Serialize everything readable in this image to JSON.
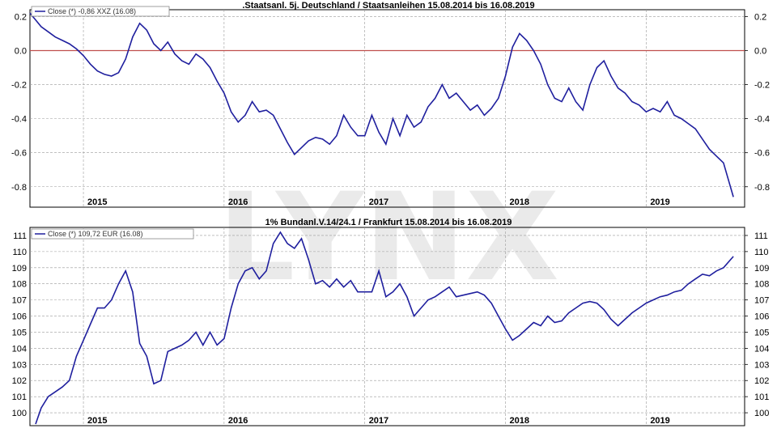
{
  "watermark": "LYNX",
  "colors": {
    "line": "#1f1f9e",
    "zero_line": "#c0504d",
    "grid": "#9a9a9a",
    "frame": "#000000"
  },
  "chart_data": [
    {
      "type": "line",
      "title": ".Staatsanl. 5j. Deutschland / Staatsanleihen 15.08.2014 bis 16.08.2019",
      "legend": "Close (*) -0,86 XXZ (16.08)",
      "x_tick_labels": [
        "2015",
        "2016",
        "2017",
        "2018",
        "2019"
      ],
      "x_tick_values": [
        2015.0,
        2016.0,
        2017.0,
        2018.0,
        2019.0
      ],
      "xlim": [
        2014.62,
        2019.7
      ],
      "ylim": [
        -0.92,
        0.24
      ],
      "y_tick_values": [
        0.2,
        0.0,
        -0.2,
        -0.4,
        -0.6,
        -0.8
      ],
      "y_tick_labels": [
        "0.2",
        "0.0",
        "-0.2",
        "-0.4",
        "-0.6",
        "-0.8"
      ],
      "reference_line": 0.0,
      "series": [
        {
          "x": [
            2014.62,
            2014.66,
            2014.7,
            2014.75,
            2014.8,
            2014.85,
            2014.9,
            2014.95,
            2015.0,
            2015.05,
            2015.1,
            2015.15,
            2015.2,
            2015.25,
            2015.3,
            2015.35,
            2015.4,
            2015.45,
            2015.5,
            2015.55,
            2015.6,
            2015.65,
            2015.7,
            2015.75,
            2015.8,
            2015.85,
            2015.9,
            2015.95,
            2016.0,
            2016.05,
            2016.1,
            2016.15,
            2016.2,
            2016.25,
            2016.3,
            2016.35,
            2016.4,
            2016.45,
            2016.5,
            2016.55,
            2016.6,
            2016.65,
            2016.7,
            2016.75,
            2016.8,
            2016.85,
            2016.9,
            2016.95,
            2017.0,
            2017.05,
            2017.1,
            2017.15,
            2017.2,
            2017.25,
            2017.3,
            2017.35,
            2017.4,
            2017.45,
            2017.5,
            2017.55,
            2017.6,
            2017.65,
            2017.7,
            2017.75,
            2017.8,
            2017.85,
            2017.9,
            2017.95,
            2018.0,
            2018.05,
            2018.1,
            2018.15,
            2018.2,
            2018.25,
            2018.3,
            2018.35,
            2018.4,
            2018.45,
            2018.5,
            2018.55,
            2018.6,
            2018.65,
            2018.7,
            2018.75,
            2018.8,
            2018.85,
            2018.9,
            2018.95,
            2019.0,
            2019.05,
            2019.1,
            2019.15,
            2019.2,
            2019.25,
            2019.3,
            2019.35,
            2019.4,
            2019.45,
            2019.5,
            2019.55,
            2019.62
          ],
          "y": [
            0.22,
            0.18,
            0.14,
            0.11,
            0.08,
            0.06,
            0.04,
            0.01,
            -0.03,
            -0.08,
            -0.12,
            -0.14,
            -0.15,
            -0.13,
            -0.05,
            0.08,
            0.16,
            0.12,
            0.04,
            0.0,
            0.05,
            -0.02,
            -0.06,
            -0.08,
            -0.02,
            -0.05,
            -0.1,
            -0.18,
            -0.25,
            -0.36,
            -0.42,
            -0.38,
            -0.3,
            -0.36,
            -0.35,
            -0.38,
            -0.46,
            -0.54,
            -0.61,
            -0.57,
            -0.53,
            -0.51,
            -0.52,
            -0.55,
            -0.5,
            -0.38,
            -0.45,
            -0.5,
            -0.5,
            -0.38,
            -0.48,
            -0.55,
            -0.4,
            -0.5,
            -0.38,
            -0.45,
            -0.42,
            -0.33,
            -0.28,
            -0.2,
            -0.28,
            -0.25,
            -0.3,
            -0.35,
            -0.32,
            -0.38,
            -0.34,
            -0.28,
            -0.15,
            0.02,
            0.1,
            0.06,
            0.0,
            -0.08,
            -0.2,
            -0.28,
            -0.3,
            -0.22,
            -0.3,
            -0.35,
            -0.2,
            -0.1,
            -0.06,
            -0.15,
            -0.22,
            -0.25,
            -0.3,
            -0.32,
            -0.36,
            -0.34,
            -0.36,
            -0.3,
            -0.38,
            -0.4,
            -0.43,
            -0.46,
            -0.52,
            -0.58,
            -0.62,
            -0.66,
            -0.86
          ]
        }
      ]
    },
    {
      "type": "line",
      "title": "1% Bundanl.V.14/24.1 / Frankfurt 15.08.2014 bis 16.08.2019",
      "legend": "Close (*) 109,72 EUR (16.08)",
      "x_tick_labels": [
        "2015",
        "2016",
        "2017",
        "2018",
        "2019"
      ],
      "x_tick_values": [
        2015.0,
        2016.0,
        2017.0,
        2018.0,
        2019.0
      ],
      "xlim": [
        2014.62,
        2019.7
      ],
      "ylim": [
        99.2,
        111.5
      ],
      "y_tick_values": [
        111,
        110,
        109,
        108,
        107,
        106,
        105,
        104,
        103,
        102,
        101,
        100
      ],
      "y_tick_labels": [
        "111",
        "110",
        "109",
        "108",
        "107",
        "106",
        "105",
        "104",
        "103",
        "102",
        "101",
        "100"
      ],
      "series": [
        {
          "x": [
            2014.66,
            2014.7,
            2014.75,
            2014.8,
            2014.85,
            2014.9,
            2014.95,
            2015.0,
            2015.05,
            2015.1,
            2015.15,
            2015.2,
            2015.25,
            2015.3,
            2015.35,
            2015.4,
            2015.45,
            2015.5,
            2015.55,
            2015.6,
            2015.65,
            2015.7,
            2015.75,
            2015.8,
            2015.85,
            2015.9,
            2015.95,
            2016.0,
            2016.05,
            2016.1,
            2016.15,
            2016.2,
            2016.25,
            2016.3,
            2016.35,
            2016.4,
            2016.45,
            2016.5,
            2016.55,
            2016.6,
            2016.65,
            2016.7,
            2016.75,
            2016.8,
            2016.85,
            2016.9,
            2016.95,
            2017.0,
            2017.05,
            2017.1,
            2017.15,
            2017.2,
            2017.25,
            2017.3,
            2017.35,
            2017.4,
            2017.45,
            2017.5,
            2017.55,
            2017.6,
            2017.65,
            2017.7,
            2017.75,
            2017.8,
            2017.85,
            2017.9,
            2017.95,
            2018.0,
            2018.05,
            2018.1,
            2018.15,
            2018.2,
            2018.25,
            2018.3,
            2018.35,
            2018.4,
            2018.45,
            2018.5,
            2018.55,
            2018.6,
            2018.65,
            2018.7,
            2018.75,
            2018.8,
            2018.85,
            2018.9,
            2018.95,
            2019.0,
            2019.05,
            2019.1,
            2019.15,
            2019.2,
            2019.25,
            2019.3,
            2019.35,
            2019.4,
            2019.45,
            2019.5,
            2019.55,
            2019.62
          ],
          "y": [
            99.3,
            100.3,
            101.0,
            101.3,
            101.6,
            102.0,
            103.5,
            104.5,
            105.5,
            106.5,
            106.5,
            107.0,
            108.0,
            108.8,
            107.5,
            104.3,
            103.5,
            101.8,
            102.0,
            103.8,
            104.0,
            104.2,
            104.5,
            105.0,
            104.2,
            105.0,
            104.2,
            104.6,
            106.5,
            108.0,
            108.8,
            109.0,
            108.3,
            108.8,
            110.5,
            111.2,
            110.5,
            110.2,
            110.8,
            109.5,
            108.0,
            108.2,
            107.8,
            108.3,
            107.8,
            108.2,
            107.5,
            107.5,
            107.5,
            108.8,
            107.2,
            107.5,
            108.0,
            107.2,
            106.0,
            106.5,
            107.0,
            107.2,
            107.5,
            107.8,
            107.2,
            107.3,
            107.4,
            107.5,
            107.3,
            106.8,
            106.0,
            105.2,
            104.5,
            104.8,
            105.2,
            105.6,
            105.4,
            106.0,
            105.6,
            105.7,
            106.2,
            106.5,
            106.8,
            106.9,
            106.8,
            106.4,
            105.8,
            105.4,
            105.8,
            106.2,
            106.5,
            106.8,
            107.0,
            107.2,
            107.3,
            107.5,
            107.6,
            108.0,
            108.3,
            108.6,
            108.5,
            108.8,
            109.0,
            109.7
          ]
        }
      ]
    }
  ]
}
